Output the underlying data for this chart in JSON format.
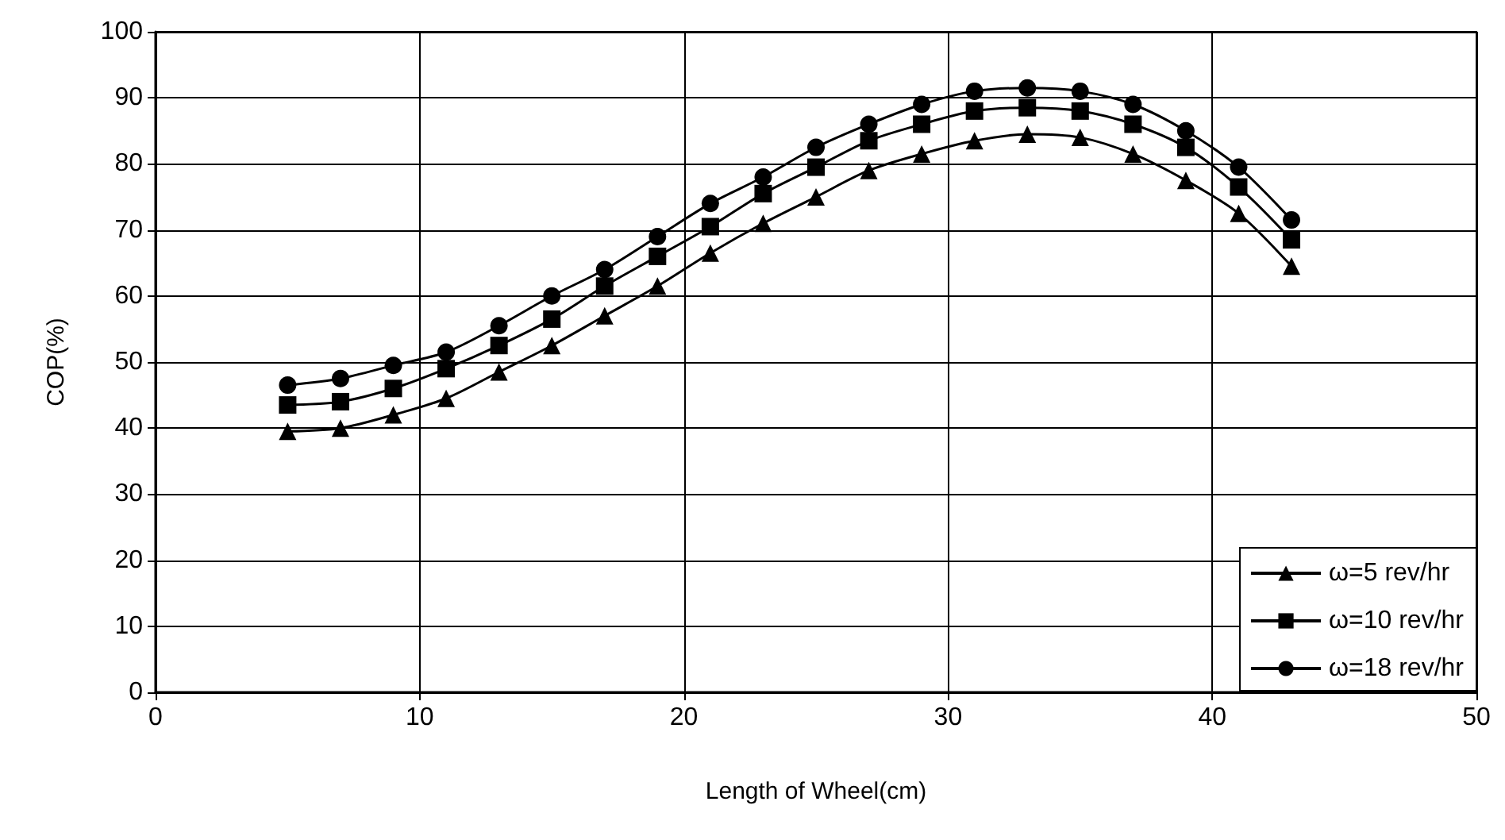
{
  "chart_data": {
    "type": "line",
    "xlabel": "Length of Wheel(cm)",
    "ylabel": "COP(%)",
    "x": [
      5,
      7,
      9,
      11,
      13,
      15,
      17,
      19,
      21,
      23,
      25,
      27,
      29,
      31,
      33,
      35,
      37,
      39,
      41,
      43
    ],
    "series": [
      {
        "name": "ω=5 rev/hr",
        "color": "#000000",
        "marker": "triangle",
        "values": [
          39.5,
          40,
          42,
          44.5,
          48.5,
          52.5,
          57,
          61.5,
          66.5,
          71,
          75,
          79,
          81.5,
          83.5,
          84.5,
          84,
          81.5,
          77.5,
          72.5,
          64.5
        ]
      },
      {
        "name": "ω=10 rev/hr",
        "color": "#000000",
        "marker": "square",
        "values": [
          43.5,
          44,
          46,
          49,
          52.5,
          56.5,
          61.5,
          66,
          70.5,
          75.5,
          79.5,
          83.5,
          86,
          88,
          88.5,
          88,
          86,
          82.5,
          76.5,
          68.5
        ]
      },
      {
        "name": "ω=18 rev/hr",
        "color": "#000000",
        "marker": "circle",
        "values": [
          46.5,
          47.5,
          49.5,
          51.5,
          55.5,
          60,
          64,
          69,
          74,
          78,
          82.5,
          86,
          89,
          91,
          91.5,
          91,
          89,
          85,
          79.5,
          71.5
        ]
      }
    ],
    "xlim": [
      0,
      50
    ],
    "xticks": [
      0,
      10,
      20,
      30,
      40,
      50
    ],
    "ylim": [
      0,
      100
    ],
    "yticks": [
      0,
      10,
      20,
      30,
      40,
      50,
      60,
      70,
      80,
      90,
      100
    ],
    "grid": true,
    "legend": "bottom right",
    "line_style": "solid"
  }
}
